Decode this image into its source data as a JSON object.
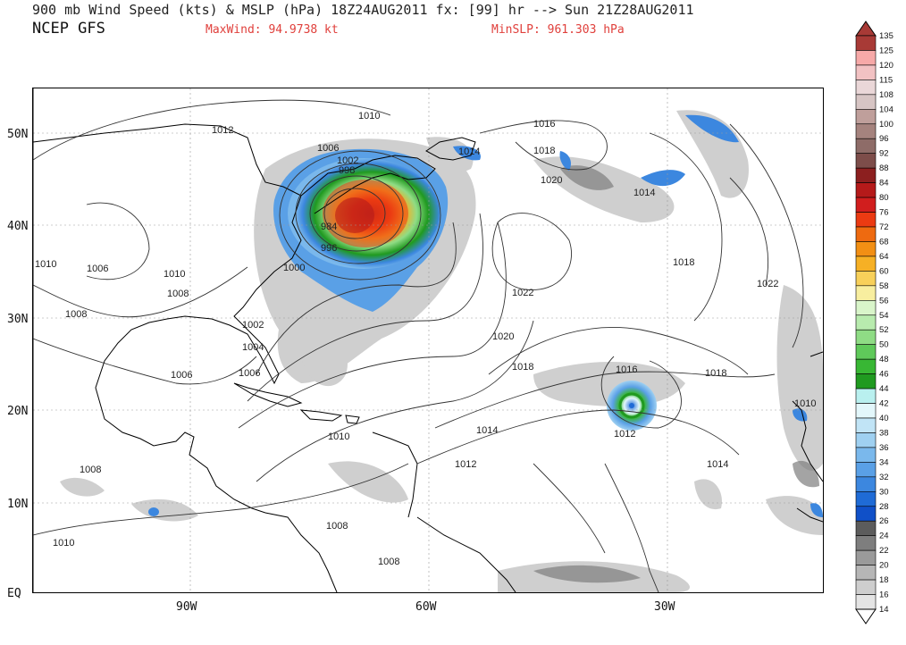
{
  "header": {
    "title": "900 mb Wind Speed (kts) & MSLP (hPa) 18Z24AUG2011 fx: [99] hr --> Sun 21Z28AUG2011",
    "model": "NCEP GFS",
    "max_wind": "MaxWind: 94.9738 kt",
    "min_slp": "MinSLP: 961.303 hPa"
  },
  "axes": {
    "lat_labels": [
      "50N",
      "40N",
      "30N",
      "20N",
      "10N",
      "EQ"
    ],
    "lon_labels": [
      "90W",
      "60W",
      "30W"
    ]
  },
  "isobar_labels": [
    "1010",
    "1012",
    "1006",
    "1002",
    "998",
    "984",
    "996",
    "1000",
    "1010",
    "1006",
    "1008",
    "1010",
    "1008",
    "1002",
    "1004",
    "1006",
    "1006",
    "1010",
    "1008",
    "1010",
    "1008",
    "1008",
    "1014",
    "1016",
    "1018",
    "1020",
    "1014",
    "1018",
    "1022",
    "1020",
    "1018",
    "1014",
    "1012",
    "1016",
    "1012",
    "1018",
    "1022",
    "1014",
    "1010"
  ],
  "colorbar": {
    "levels": [
      "135",
      "125",
      "120",
      "115",
      "108",
      "104",
      "100",
      "96",
      "92",
      "88",
      "84",
      "80",
      "76",
      "72",
      "68",
      "64",
      "60",
      "58",
      "56",
      "54",
      "52",
      "50",
      "48",
      "46",
      "44",
      "42",
      "40",
      "38",
      "36",
      "34",
      "32",
      "30",
      "28",
      "26",
      "24",
      "22",
      "20",
      "18",
      "16",
      "14"
    ],
    "colors": [
      "#a83a36",
      "#f7a9a8",
      "#f2c2c3",
      "#ead7d8",
      "#d7c5c4",
      "#bf9f9b",
      "#a5837e",
      "#8e6c68",
      "#7d4d4a",
      "#8c1f1f",
      "#b51a1a",
      "#d11e1e",
      "#eb3a12",
      "#ee6a10",
      "#f28f14",
      "#f6b025",
      "#f8d05a",
      "#f8ee9f",
      "#d9f5ca",
      "#b8ebae",
      "#8fdc85",
      "#5fc95a",
      "#38b734",
      "#209a20",
      "#b9f0ef",
      "#e3f7fb",
      "#c1e4f6",
      "#9fd0f1",
      "#7ab8ec",
      "#5aa0e6",
      "#3c87df",
      "#1f6bd6",
      "#1050c8",
      "#5c5c5c",
      "#7e7e7e",
      "#9a9a9a",
      "#b6b6b6",
      "#cecece",
      "#e4e4e4"
    ]
  },
  "colors": {
    "max_min_text": "#e0403c",
    "land_outline": "#000000",
    "isobar": "#333333"
  }
}
